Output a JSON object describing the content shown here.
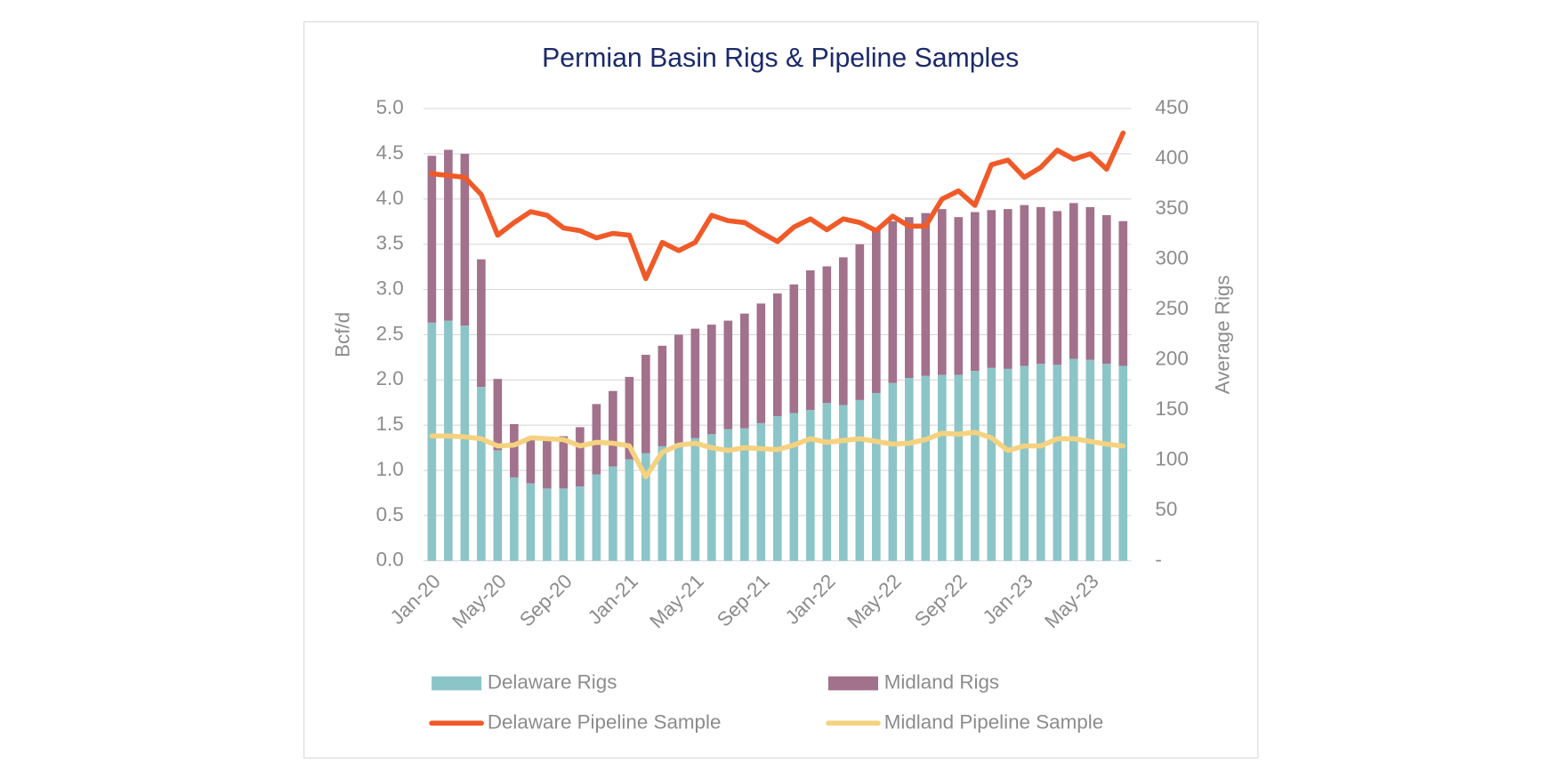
{
  "chart_data": {
    "type": "bar",
    "title": "Permian Basin Rigs & Pipeline Samples",
    "y_label": "Bcf/d",
    "y2_label": "Average Rigs",
    "categories": [
      "Jan-20",
      null,
      null,
      null,
      "May-20",
      null,
      null,
      null,
      "Sep-20",
      null,
      null,
      null,
      "Jan-21",
      null,
      null,
      null,
      "May-21",
      null,
      null,
      null,
      "Sep-21",
      null,
      null,
      null,
      "Jan-22",
      null,
      null,
      null,
      "May-22",
      null,
      null,
      null,
      "Sep-22",
      null,
      null,
      null,
      "Jan-23",
      null,
      null,
      null,
      "May-23",
      null,
      null
    ],
    "ylim": [
      0,
      5
    ],
    "yticks": [
      {
        "value": 0,
        "label": "0.0"
      },
      {
        "value": 0.5,
        "label": "0.5"
      },
      {
        "value": 1,
        "label": "1.0"
      },
      {
        "value": 1.5,
        "label": "1.5"
      },
      {
        "value": 2,
        "label": "2.0"
      },
      {
        "value": 2.5,
        "label": "2.5"
      },
      {
        "value": 3,
        "label": "3.0"
      },
      {
        "value": 3.5,
        "label": "3.5"
      },
      {
        "value": 4,
        "label": "4.0"
      },
      {
        "value": 4.5,
        "label": "4.5"
      },
      {
        "value": 5,
        "label": "5.0"
      }
    ],
    "y2lim": [
      0,
      450
    ],
    "y2ticks": [
      {
        "value": 0,
        "label": "-"
      },
      50,
      100,
      150,
      200,
      250,
      300,
      350,
      400,
      450
    ],
    "grid": true,
    "stacked": true,
    "series": [
      {
        "name": "Delaware Rigs",
        "type": "bar",
        "axis": "y2",
        "color": "#8cc5c8",
        "values": [
          237,
          239,
          234,
          173,
          110,
          83,
          77,
          72,
          72,
          74,
          86,
          94,
          101,
          107,
          114,
          117,
          122,
          126,
          131,
          132,
          137,
          144,
          147,
          150,
          157,
          155,
          160,
          167,
          177,
          182,
          184,
          185,
          185,
          189,
          192,
          191,
          194,
          196,
          195,
          201,
          200,
          196,
          194
        ]
      },
      {
        "name": "Midland Rigs",
        "type": "bar",
        "axis": "y2",
        "color": "#a2718b",
        "values": [
          166,
          170,
          171,
          127,
          71,
          53,
          46,
          50,
          52,
          59,
          70,
          75,
          82,
          98,
          100,
          108,
          109,
          109,
          108,
          114,
          119,
          122,
          128,
          139,
          136,
          147,
          155,
          163,
          161,
          160,
          162,
          165,
          157,
          158,
          157,
          159,
          160,
          156,
          153,
          155,
          152,
          148,
          144
        ]
      },
      {
        "name": "Delaware Pipeline Sample",
        "type": "line",
        "color": "#f05a28",
        "values": [
          4.28,
          4.26,
          4.24,
          4.05,
          3.6,
          3.74,
          3.86,
          3.82,
          3.68,
          3.65,
          3.57,
          3.62,
          3.6,
          3.12,
          3.52,
          3.43,
          3.52,
          3.82,
          3.76,
          3.74,
          3.63,
          3.53,
          3.69,
          3.78,
          3.66,
          3.78,
          3.74,
          3.65,
          3.81,
          3.7,
          3.7,
          4.0,
          4.09,
          3.93,
          4.38,
          4.43,
          4.24,
          4.35,
          4.54,
          4.44,
          4.5,
          4.33,
          4.73
        ]
      },
      {
        "name": "Midland Pipeline Sample",
        "type": "line",
        "color": "#f5d27f",
        "values": [
          1.38,
          1.38,
          1.37,
          1.35,
          1.27,
          1.28,
          1.36,
          1.35,
          1.34,
          1.27,
          1.31,
          1.3,
          1.27,
          0.93,
          1.2,
          1.28,
          1.3,
          1.25,
          1.22,
          1.25,
          1.24,
          1.23,
          1.28,
          1.35,
          1.31,
          1.33,
          1.35,
          1.32,
          1.29,
          1.3,
          1.34,
          1.41,
          1.4,
          1.42,
          1.36,
          1.22,
          1.27,
          1.27,
          1.35,
          1.35,
          1.32,
          1.29,
          1.27
        ]
      }
    ]
  }
}
